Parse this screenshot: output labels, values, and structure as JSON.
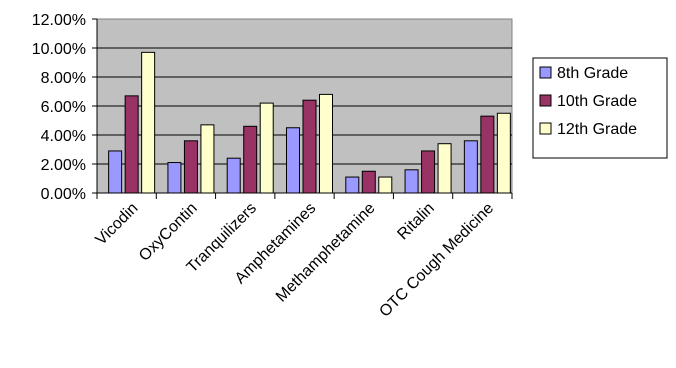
{
  "chart_data": {
    "type": "bar",
    "categories": [
      "Vicodin",
      "OxyContin",
      "Tranquilizers",
      "Amphetamines",
      "Methamphetamine",
      "Ritalin",
      "OTC Cough Medicine"
    ],
    "series": [
      {
        "name": "8th Grade",
        "color": "#9999ff",
        "values": [
          2.9,
          2.1,
          2.4,
          4.5,
          1.1,
          1.6,
          3.6
        ]
      },
      {
        "name": "10th Grade",
        "color": "#993366",
        "values": [
          6.7,
          3.6,
          4.6,
          6.4,
          1.5,
          2.9,
          5.3
        ]
      },
      {
        "name": "12th Grade",
        "color": "#ffffcc",
        "values": [
          9.7,
          4.7,
          6.2,
          6.8,
          1.1,
          3.4,
          5.5
        ]
      }
    ],
    "title": "",
    "xlabel": "",
    "ylabel": "",
    "ylim": [
      0,
      12
    ],
    "yticks": [
      "0.00%",
      "2.00%",
      "4.00%",
      "6.00%",
      "8.00%",
      "10.00%",
      "12.00%"
    ],
    "grid": true,
    "plot_background": "#c0c0c0",
    "legend_position": "right"
  }
}
